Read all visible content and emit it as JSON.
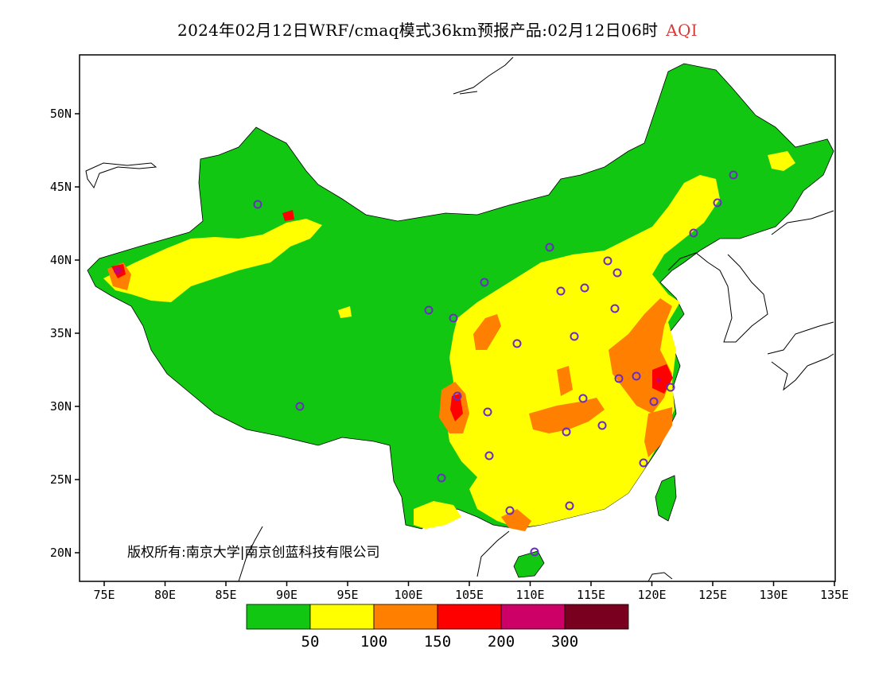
{
  "title": {
    "main": "2024年02月12日WRF/cmaq模式36km预报产品:02月12日06时",
    "variable": "AQI",
    "variable_color": "#d63a3a"
  },
  "map": {
    "region": "China",
    "lat_range": [
      18,
      54
    ],
    "lon_range": [
      73,
      135
    ],
    "lat_ticks": [
      "20N",
      "25N",
      "30N",
      "35N",
      "40N",
      "45N",
      "50N"
    ],
    "lon_ticks": [
      "75E",
      "80E",
      "85E",
      "90E",
      "95E",
      "100E",
      "105E",
      "110E",
      "115E",
      "120E",
      "125E",
      "130E",
      "135E"
    ]
  },
  "legend": {
    "colors": [
      "#12c712",
      "#ffff00",
      "#ff7f00",
      "#ff0000",
      "#cc0066",
      "#7a0020"
    ],
    "labels": [
      "50",
      "100",
      "150",
      "200",
      "300"
    ]
  },
  "copyright": "版权所有:南京大学|南京创蓝科技有限公司",
  "fill_colors": {
    "good": "#12c712",
    "moderate": "#ffff00",
    "unhealthy_sensitive": "#ff7f00",
    "unhealthy": "#ff0000",
    "very_unhealthy": "#cc0066",
    "marker": "#6a2cc4"
  }
}
